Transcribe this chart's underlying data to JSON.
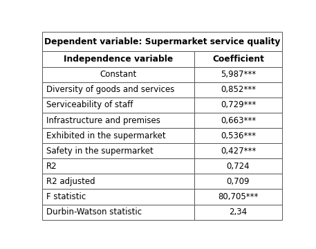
{
  "title": "Dependent variable: Supermarket service quality",
  "col_headers": [
    "Independence variable",
    "Coefficient"
  ],
  "rows": [
    [
      "Constant",
      "5,987***",
      "center"
    ],
    [
      "Diversity of goods and services",
      "0,852***",
      "left"
    ],
    [
      "Serviceability of staff",
      "0,729***",
      "left"
    ],
    [
      "Infrastructure and premises",
      "0,663***",
      "left"
    ],
    [
      "Exhibited in the supermarket",
      "0,536***",
      "left"
    ],
    [
      "Safety in the supermarket",
      "0,427***",
      "left"
    ],
    [
      "R2",
      "0,724",
      "left"
    ],
    [
      "R2 adjusted",
      "0,709",
      "left"
    ],
    [
      "F statistic",
      "80,705***",
      "left"
    ],
    [
      "Durbin-Watson statistic",
      "2,34",
      "left"
    ]
  ],
  "col_split": 0.635,
  "bg_color": "#ffffff",
  "border_color": "#555555",
  "title_fontsize": 8.8,
  "header_fontsize": 8.8,
  "cell_fontsize": 8.5,
  "figsize": [
    4.57,
    3.6
  ],
  "dpi": 100
}
